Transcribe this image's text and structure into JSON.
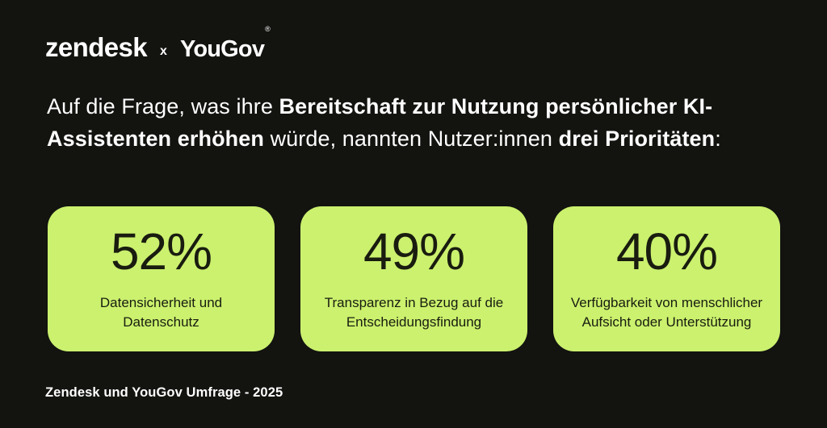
{
  "page": {
    "background_color": "#131310",
    "accent_green": "#CBF16E",
    "text_on_green": "#191C0F",
    "text_color": "#FFFFFF"
  },
  "logo": {
    "zendesk": "zendesk",
    "separator": "x",
    "yougov": "YouGov",
    "registered_mark": "®"
  },
  "headline": {
    "segments": [
      {
        "text": "Auf die Frage, was ihre ",
        "bold": false
      },
      {
        "text": "Bereitschaft zur Nutzung persönlicher KI-Assistenten erhöhen",
        "bold": true
      },
      {
        "text": " würde, nannten Nutzer:innen ",
        "bold": false
      },
      {
        "text": "drei Prioritäten",
        "bold": true
      },
      {
        "text": ":",
        "bold": false
      }
    ]
  },
  "cards": [
    {
      "value": "52%",
      "label": "Datensicherheit und Datenschutz"
    },
    {
      "value": "49%",
      "label": "Transparenz in Bezug auf die Entscheidungsfindung"
    },
    {
      "value": "40%",
      "label": "Verfügbarkeit von menschlicher Aufsicht oder Unterstützung"
    }
  ],
  "footer": {
    "source": "Zendesk und YouGov Umfrage - 2025"
  },
  "chart_data": {
    "type": "table",
    "title": "Auf die Frage, was ihre Bereitschaft zur Nutzung persönlicher KI-Assistenten erhöhen würde, nannten Nutzer:innen drei Prioritäten:",
    "categories": [
      "Datensicherheit und Datenschutz",
      "Transparenz in Bezug auf die Entscheidungsfindung",
      "Verfügbarkeit von menschlicher Aufsicht oder Unterstützung"
    ],
    "values": [
      52,
      49,
      40
    ],
    "unit": "%",
    "source": "Zendesk und YouGov Umfrage - 2025"
  }
}
